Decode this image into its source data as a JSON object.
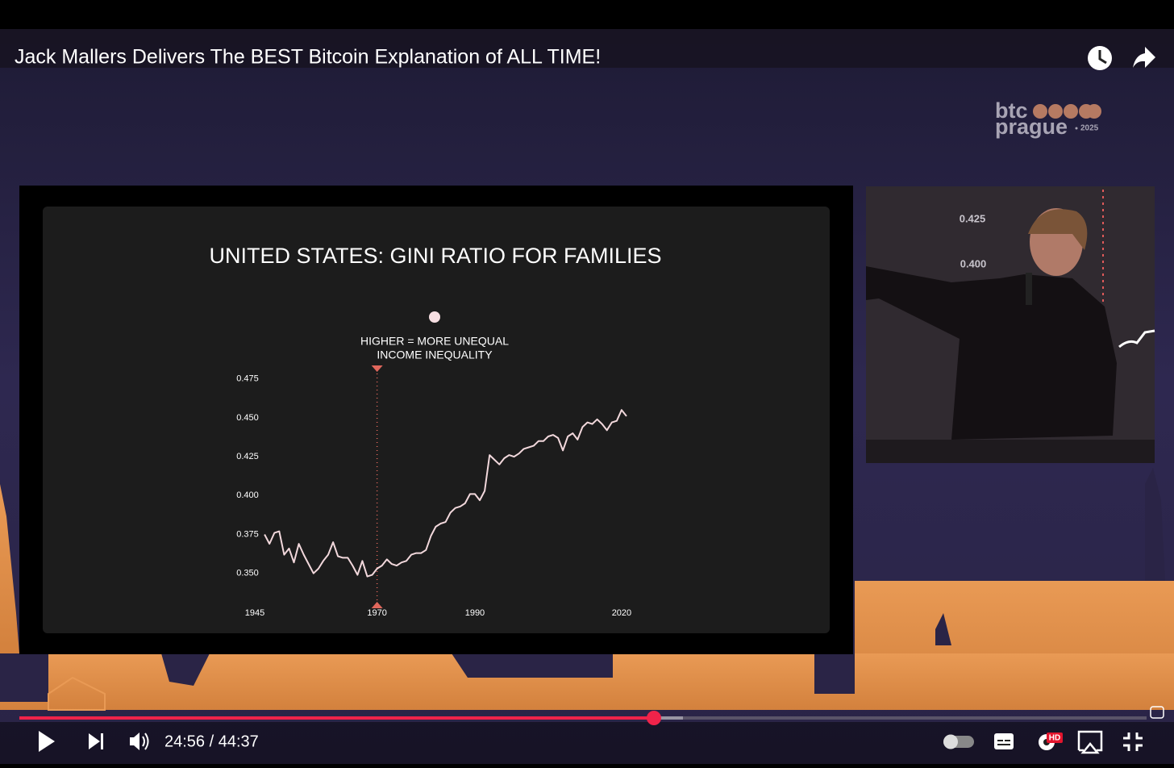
{
  "video": {
    "title": "Jack Mallers Delivers The BEST Bitcoin Explanation of ALL TIME!",
    "time": "24:56 / 44:37",
    "quality_badge": "HD"
  },
  "logo": {
    "line1": "btc",
    "line2": "prague",
    "year": "2025"
  },
  "speaker_video": {
    "screen_labels": [
      "0.425",
      "0.400"
    ]
  },
  "chart_data": {
    "type": "line",
    "title": "UNITED STATES: GINI RATIO FOR FAMILIES",
    "annotation": [
      "HIGHER = MORE UNEQUAL",
      "INCOME INEQUALITY"
    ],
    "marker_x": 1970,
    "color": "#f2d8dc",
    "marker_color": "#e0675c",
    "x": [
      1947,
      1948,
      1949,
      1950,
      1951,
      1952,
      1953,
      1954,
      1955,
      1956,
      1957,
      1958,
      1959,
      1960,
      1961,
      1962,
      1963,
      1964,
      1965,
      1966,
      1967,
      1968,
      1969,
      1970,
      1971,
      1972,
      1973,
      1974,
      1975,
      1976,
      1977,
      1978,
      1979,
      1980,
      1981,
      1982,
      1983,
      1984,
      1985,
      1986,
      1987,
      1988,
      1989,
      1990,
      1991,
      1992,
      1993,
      1994,
      1995,
      1996,
      1997,
      1998,
      1999,
      2000,
      2001,
      2002,
      2003,
      2004,
      2005,
      2006,
      2007,
      2008,
      2009,
      2010,
      2011,
      2012,
      2013,
      2014,
      2015,
      2016,
      2017,
      2018,
      2019,
      2020,
      2021
    ],
    "values": [
      0.375,
      0.369,
      0.376,
      0.377,
      0.362,
      0.366,
      0.357,
      0.369,
      0.362,
      0.356,
      0.35,
      0.353,
      0.358,
      0.362,
      0.37,
      0.361,
      0.36,
      0.36,
      0.355,
      0.349,
      0.358,
      0.348,
      0.349,
      0.353,
      0.355,
      0.359,
      0.356,
      0.355,
      0.357,
      0.358,
      0.362,
      0.363,
      0.363,
      0.365,
      0.374,
      0.38,
      0.382,
      0.383,
      0.389,
      0.392,
      0.393,
      0.395,
      0.401,
      0.401,
      0.397,
      0.403,
      0.426,
      0.423,
      0.42,
      0.424,
      0.426,
      0.425,
      0.427,
      0.43,
      0.431,
      0.432,
      0.435,
      0.435,
      0.438,
      0.439,
      0.437,
      0.429,
      0.438,
      0.44,
      0.436,
      0.444,
      0.447,
      0.446,
      0.449,
      0.446,
      0.442,
      0.447,
      0.448,
      0.455,
      0.451
    ],
    "xlim": [
      1945,
      2021
    ],
    "xticks": [
      1945,
      1970,
      1990,
      2020
    ],
    "ylim": [
      0.34,
      0.48
    ],
    "yticks": [
      0.475,
      {
        "value": 0.45,
        "label": "0.450"
      },
      0.425,
      {
        "value": 0.4,
        "label": "0.400"
      },
      0.375,
      {
        "value": 0.35,
        "label": "0.350"
      }
    ]
  }
}
